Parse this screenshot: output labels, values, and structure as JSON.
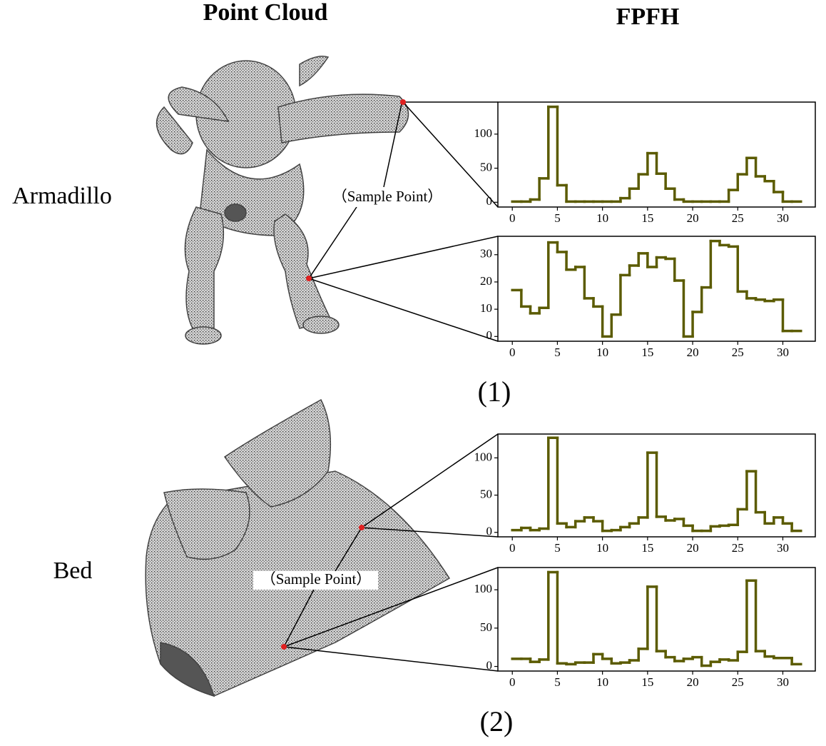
{
  "columns": [
    "Point Cloud",
    "FPFH"
  ],
  "panels": [
    {
      "name": "Armadillo",
      "annotation": "（Sample Point）",
      "caption": "(1)"
    },
    {
      "name": "Bed",
      "annotation": "（Sample Point）",
      "caption": "(2)"
    }
  ],
  "chart_data": [
    {
      "type": "histogram",
      "color": "#5b5b00",
      "bins": [
        0,
        1,
        2,
        3,
        4,
        5,
        6,
        7,
        8,
        9,
        10,
        11,
        12,
        13,
        14,
        15,
        16,
        17,
        18,
        19,
        20,
        21,
        22,
        23,
        24,
        25,
        26,
        27,
        28,
        29,
        30,
        31,
        32
      ],
      "values": [
        1,
        1,
        4,
        35,
        140,
        25,
        1,
        1,
        1,
        1,
        1,
        1,
        6,
        20,
        41,
        72,
        42,
        20,
        4,
        1,
        1,
        1,
        1,
        1,
        18,
        41,
        65,
        38,
        31,
        15,
        1,
        1
      ],
      "xlim": [
        -1.6,
        33.6
      ],
      "ylim": [
        -7,
        147
      ],
      "xticks": [
        0,
        5,
        10,
        15,
        20,
        25,
        30
      ],
      "yticks": [
        0,
        50,
        100
      ]
    },
    {
      "type": "histogram",
      "color": "#5b5b00",
      "bins": [
        0,
        1,
        2,
        3,
        4,
        5,
        6,
        7,
        8,
        9,
        10,
        11,
        12,
        13,
        14,
        15,
        16,
        17,
        18,
        19,
        20,
        21,
        22,
        23,
        24,
        25,
        26,
        27,
        28,
        29,
        30,
        31,
        32
      ],
      "values": [
        17,
        11,
        8.5,
        10.5,
        34.5,
        31,
        24.5,
        25.5,
        14,
        11,
        0,
        8,
        22.5,
        26,
        30.5,
        25.5,
        29,
        28.5,
        20.5,
        0,
        9,
        18,
        35,
        33.5,
        33,
        16.5,
        14,
        13.5,
        13,
        13.5,
        2,
        2
      ],
      "xlim": [
        -1.6,
        33.6
      ],
      "ylim": [
        -1.75,
        36.75
      ],
      "xticks": [
        0,
        5,
        10,
        15,
        20,
        25,
        30
      ],
      "yticks": [
        0,
        10,
        20,
        30
      ]
    },
    {
      "type": "histogram",
      "color": "#5b5b00",
      "bins": [
        0,
        1,
        2,
        3,
        4,
        5,
        6,
        7,
        8,
        9,
        10,
        11,
        12,
        13,
        14,
        15,
        16,
        17,
        18,
        19,
        20,
        21,
        22,
        23,
        24,
        25,
        26,
        27,
        28,
        29,
        30,
        31,
        32
      ],
      "values": [
        3,
        6,
        3,
        5,
        127,
        12,
        7,
        15,
        20,
        15,
        2,
        3,
        7,
        12,
        20,
        107,
        21,
        16,
        18,
        9,
        2,
        2,
        8,
        9,
        10,
        31,
        82,
        27,
        12,
        20,
        12,
        2
      ],
      "xlim": [
        -1.6,
        33.6
      ],
      "ylim": [
        -6,
        132
      ],
      "xticks": [
        0,
        5,
        10,
        15,
        20,
        25,
        30
      ],
      "yticks": [
        0,
        50,
        100
      ]
    },
    {
      "type": "histogram",
      "color": "#5b5b00",
      "bins": [
        0,
        1,
        2,
        3,
        4,
        5,
        6,
        7,
        8,
        9,
        10,
        11,
        12,
        13,
        14,
        15,
        16,
        17,
        18,
        19,
        20,
        21,
        22,
        23,
        24,
        25,
        26,
        27,
        28,
        29,
        30,
        31,
        32
      ],
      "values": [
        10,
        10,
        6,
        9,
        123,
        4,
        3,
        5,
        5,
        16,
        10,
        4,
        5,
        8,
        23,
        104,
        20,
        12,
        7,
        10,
        12,
        1,
        6,
        9,
        8,
        19,
        112,
        20,
        13,
        11,
        11,
        3
      ],
      "xlim": [
        -1.6,
        33.6
      ],
      "ylim": [
        -6,
        129
      ],
      "xticks": [
        0,
        5,
        10,
        15,
        20,
        25,
        30
      ],
      "yticks": [
        0,
        50,
        100
      ]
    }
  ]
}
